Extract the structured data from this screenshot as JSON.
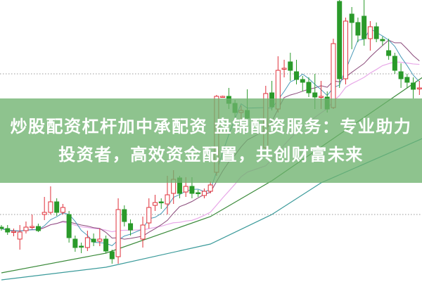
{
  "title": "炒股配资杠杆加中承配资 盘锦配资服务：专业助力投资者，高效资金配置，共创财富未来",
  "colors": {
    "up": "#e0303a",
    "down": "#2a9a2a",
    "ma5": "#4a9ab8",
    "ma10": "#8a4a7a",
    "ma20": "#e8a8e8",
    "ma_green": "#3a8a3a",
    "ma_teal": "#3a9a9a",
    "banner": "#6eb26e",
    "grid": "#999999"
  },
  "chart_data": {
    "type": "candlestick",
    "title": "",
    "xlabel": "",
    "ylabel": "",
    "ylim": [
      0,
      40
    ],
    "grid": "horizontal dotted",
    "candles": [
      [
        7.7,
        7.5,
        8.0,
        7.2
      ],
      [
        7.5,
        7.0,
        8.0,
        6.6
      ],
      [
        7.0,
        7.1,
        7.5,
        6.4
      ],
      [
        6.0,
        7.0,
        8.0,
        4.5
      ],
      [
        7.2,
        7.7,
        8.5,
        6.8
      ],
      [
        7.7,
        7.8,
        9.5,
        7.4
      ],
      [
        7.8,
        7.2,
        8.2,
        7.0
      ],
      [
        9.5,
        9.8,
        12.0,
        8.7
      ],
      [
        9.8,
        11.3,
        13.5,
        9.5
      ],
      [
        11.3,
        9.8,
        11.8,
        9.3
      ],
      [
        9.8,
        10.5,
        11.0,
        9.5
      ],
      [
        9.5,
        6.2,
        10.0,
        5.5
      ],
      [
        6.0,
        4.8,
        6.5,
        4.2
      ],
      [
        5.0,
        4.9,
        5.5,
        4.0
      ],
      [
        4.8,
        6.2,
        7.2,
        4.3
      ],
      [
        6.0,
        5.6,
        6.8,
        5.0
      ],
      [
        5.7,
        6.0,
        7.5,
        5.0
      ],
      [
        6.0,
        4.3,
        6.5,
        4.0
      ],
      [
        4.2,
        3.2,
        4.5,
        2.5
      ],
      [
        3.5,
        10.2,
        11.8,
        2.5
      ],
      [
        10.2,
        8.5,
        10.8,
        7.8
      ],
      [
        8.2,
        7.3,
        8.8,
        6.5
      ],
      null,
      [
        6.0,
        8.0,
        9.2,
        4.8
      ],
      [
        8.3,
        10.5,
        11.8,
        7.5
      ],
      [
        10.8,
        11.2,
        12.3,
        10.0
      ],
      [
        11.3,
        11.2,
        11.8,
        10.3
      ],
      [
        11.0,
        12.3,
        15.0,
        9.5
      ],
      [
        12.5,
        14.5,
        15.8,
        11.0
      ],
      [
        14.7,
        12.5,
        15.0,
        11.8
      ],
      [
        12.7,
        13.5,
        14.8,
        12.0
      ],
      [
        13.5,
        12.5,
        14.8,
        11.8
      ],
      [
        12.6,
        12.5,
        13.0,
        12.0
      ],
      [
        12.2,
        12.8,
        13.2,
        11.8
      ],
      [
        12.8,
        13.7,
        14.2,
        12.5
      ],
      [
        15.5,
        26.3,
        26.5,
        15.0
      ],
      [
        26.3,
        26.3,
        26.4,
        26.2
      ],
      [
        26.3,
        25.3,
        27.5,
        24.5
      ],
      [
        25.3,
        24.0,
        25.8,
        22.5
      ],
      [
        24.0,
        24.3,
        25.0,
        23.0
      ],
      [
        24.3,
        23.2,
        27.3,
        22.0
      ],
      null,
      null,
      [
        19.0,
        26.7,
        27.8,
        18.8
      ],
      [
        26.8,
        24.8,
        28.5,
        24.3
      ],
      [
        24.5,
        30.0,
        32.0,
        24.0
      ],
      [
        30.2,
        30.3,
        31.5,
        29.0
      ],
      [
        31.2,
        30.0,
        32.5,
        28.5
      ],
      [
        29.8,
        28.7,
        31.5,
        28.0
      ],
      [
        28.7,
        28.3,
        29.2,
        27.0
      ],
      [
        28.3,
        26.8,
        29.0,
        26.2
      ],
      [
        26.8,
        26.2,
        29.5,
        24.5
      ],
      [
        26.2,
        26.3,
        28.5,
        24.5
      ],
      [
        26.2,
        24.5,
        27.0,
        24.0
      ],
      [
        24.7,
        33.8,
        34.5,
        24.5
      ],
      [
        39.8,
        28.8,
        40.0,
        27.5
      ],
      [
        28.8,
        37.0,
        37.5,
        28.0
      ],
      [
        38.0,
        36.8,
        39.0,
        33.0
      ],
      [
        36.8,
        35.0,
        37.5,
        34.0
      ],
      [
        37.7,
        34.5,
        40.0,
        33.5
      ],
      [
        34.5,
        36.2,
        37.0,
        32.8
      ],
      [
        36.2,
        34.5,
        36.8,
        34.0
      ],
      [
        34.4,
        34.2,
        34.8,
        33.5
      ],
      [
        32.8,
        32.1,
        34.5,
        31.5
      ],
      [
        32.0,
        30.0,
        32.5,
        29.5
      ],
      [
        29.8,
        28.8,
        31.0,
        27.5
      ],
      [
        29.0,
        28.3,
        29.5,
        27.5
      ],
      [
        28.2,
        27.3,
        29.0,
        26.0
      ],
      [
        27.4,
        27.5,
        28.5,
        26.5
      ]
    ],
    "candle_fields": [
      "open",
      "close",
      "high",
      "low"
    ],
    "long_ma_green": [
      [
        0,
        1.2
      ],
      [
        17,
        4.0
      ],
      [
        34,
        9.2
      ],
      [
        44,
        14.3
      ],
      [
        56,
        21.5
      ],
      [
        69,
        29.3
      ]
    ],
    "long_ma_teal": [
      [
        0,
        0.2
      ],
      [
        17,
        2.0
      ],
      [
        34,
        5.3
      ],
      [
        44,
        9.5
      ],
      [
        52,
        14.0
      ],
      [
        69,
        20.5
      ]
    ]
  }
}
